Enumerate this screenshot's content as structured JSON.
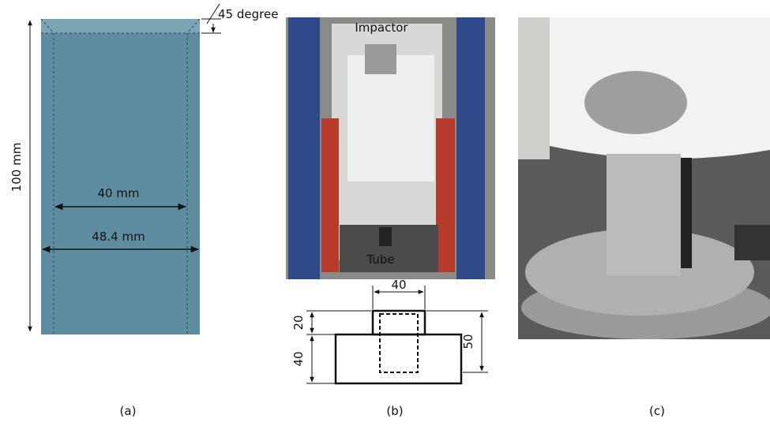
{
  "panel_a": {
    "angle_label": "45 degree",
    "height_label": "100 mm",
    "inner_width_label": "40 mm",
    "outer_width_label": "48.4 mm",
    "caption": "(a)"
  },
  "panel_b": {
    "impactor_label": "Impactor",
    "tube_label": "Tube",
    "top_width_label": "40",
    "top_height_label": "20",
    "base_height_label": "40",
    "total_height_label": "50",
    "caption": "(b)"
  },
  "panel_c": {
    "caption": "(c)"
  }
}
